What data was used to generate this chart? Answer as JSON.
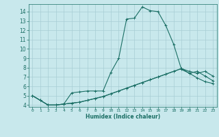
{
  "title": "",
  "xlabel": "Humidex (Indice chaleur)",
  "ylabel": "",
  "bg_color": "#c8e8ec",
  "grid_color": "#a8cdd4",
  "line_color": "#1a6e64",
  "xlim": [
    -0.5,
    23.5
  ],
  "ylim": [
    3.8,
    14.8
  ],
  "xticks": [
    0,
    1,
    2,
    3,
    4,
    5,
    6,
    7,
    8,
    9,
    10,
    11,
    12,
    13,
    14,
    15,
    16,
    17,
    18,
    19,
    20,
    21,
    22,
    23
  ],
  "yticks": [
    4,
    5,
    6,
    7,
    8,
    9,
    10,
    11,
    12,
    13,
    14
  ],
  "series": [
    {
      "x": [
        0,
        1,
        2,
        3,
        4,
        5,
        6,
        7,
        8,
        9,
        10,
        11,
        12,
        13,
        14,
        15,
        16,
        17,
        18,
        19,
        20,
        21,
        22,
        23
      ],
      "y": [
        5.0,
        4.5,
        4.0,
        4.0,
        4.1,
        5.3,
        5.4,
        5.5,
        5.5,
        5.5,
        7.5,
        9.0,
        13.2,
        13.3,
        14.5,
        14.1,
        14.0,
        12.5,
        10.5,
        7.8,
        7.4,
        7.6,
        7.1,
        6.6
      ]
    },
    {
      "x": [
        0,
        1,
        2,
        3,
        4,
        5,
        6,
        7,
        8,
        9,
        10,
        11,
        12,
        13,
        14,
        15,
        16,
        17,
        18,
        19,
        20,
        21,
        22,
        23
      ],
      "y": [
        5.0,
        4.5,
        4.0,
        4.0,
        4.1,
        4.2,
        4.3,
        4.5,
        4.7,
        4.9,
        5.2,
        5.5,
        5.8,
        6.1,
        6.4,
        6.7,
        7.0,
        7.3,
        7.6,
        7.9,
        7.6,
        7.4,
        7.6,
        7.1
      ]
    },
    {
      "x": [
        0,
        1,
        2,
        3,
        4,
        5,
        6,
        7,
        8,
        9,
        10,
        11,
        12,
        13,
        14,
        15,
        16,
        17,
        18,
        19,
        20,
        21,
        22,
        23
      ],
      "y": [
        5.0,
        4.5,
        4.0,
        4.0,
        4.1,
        4.2,
        4.3,
        4.5,
        4.7,
        4.9,
        5.2,
        5.5,
        5.8,
        6.1,
        6.4,
        6.7,
        7.0,
        7.3,
        7.6,
        7.9,
        7.4,
        6.9,
        6.5,
        6.3
      ]
    }
  ]
}
